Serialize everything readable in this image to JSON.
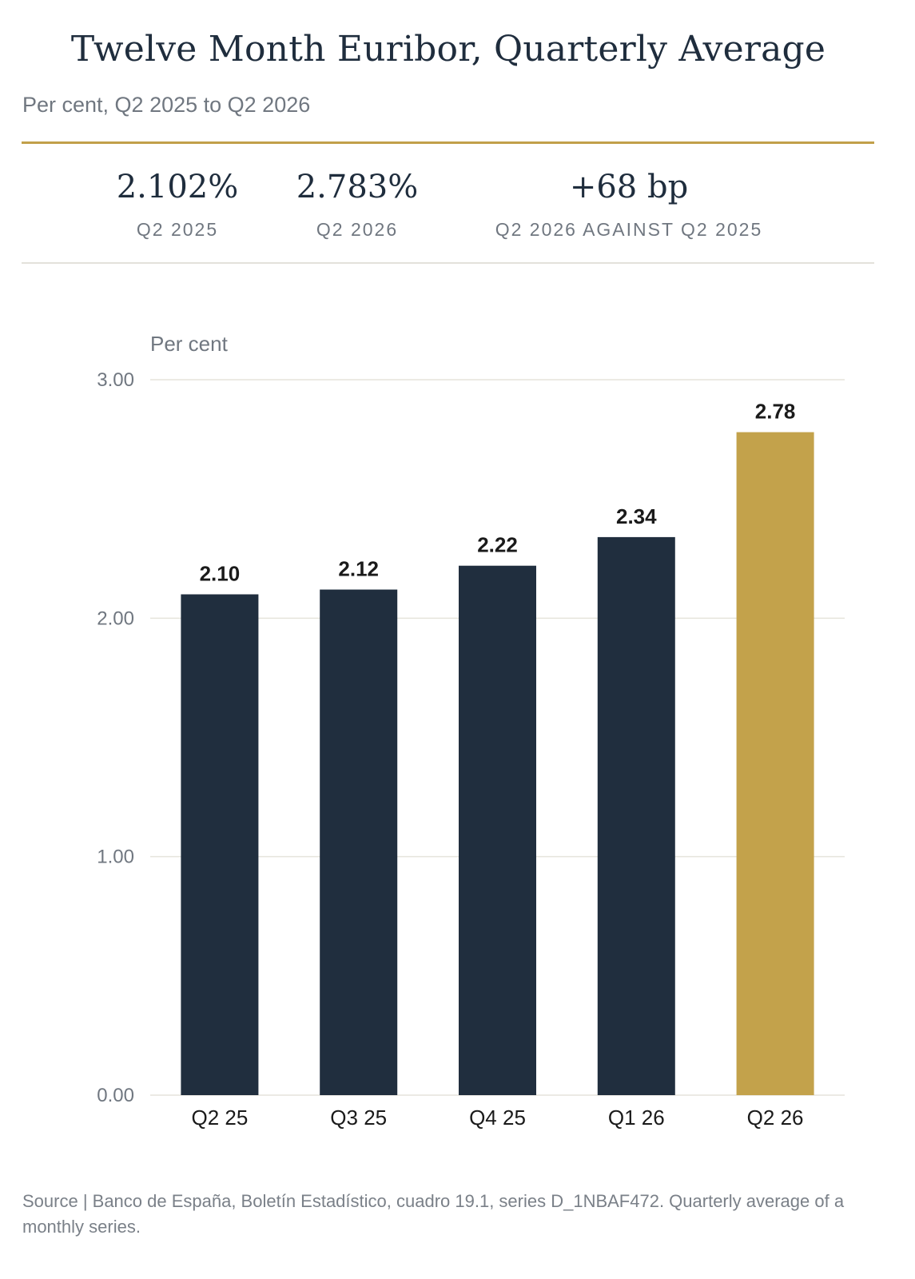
{
  "title": "Twelve Month Euribor, Quarterly Average",
  "subtitle": "Per cent, Q2 2025 to Q2 2026",
  "stats": [
    {
      "value": "2.102%",
      "label": "Q2 2025"
    },
    {
      "value": "2.783%",
      "label": "Q2 2026"
    },
    {
      "value": "+68 bp",
      "label": "Q2 2026 AGAINST Q2 2025"
    }
  ],
  "colors": {
    "bar": "#202e3e",
    "highlight": "#c3a24b",
    "gold_rule": "#c1a04a",
    "grid": "#e6e4dc"
  },
  "chart_data": {
    "type": "bar",
    "ylabel": "Per cent",
    "categories": [
      "Q2 25",
      "Q3 25",
      "Q4 25",
      "Q1 26",
      "Q2 26"
    ],
    "values": [
      2.1,
      2.12,
      2.22,
      2.34,
      2.78
    ],
    "data_labels": [
      "2.10",
      "2.12",
      "2.22",
      "2.34",
      "2.78"
    ],
    "highlight_category": "Q2 26",
    "ylim": [
      0,
      3
    ],
    "yticks": [
      "0.00",
      "1.00",
      "2.00",
      "3.00"
    ],
    "grid": true
  },
  "source": "Source | Banco de España, Boletín Estadístico, cuadro 19.1, series D_1NBAF472. Quarterly average of a monthly series."
}
